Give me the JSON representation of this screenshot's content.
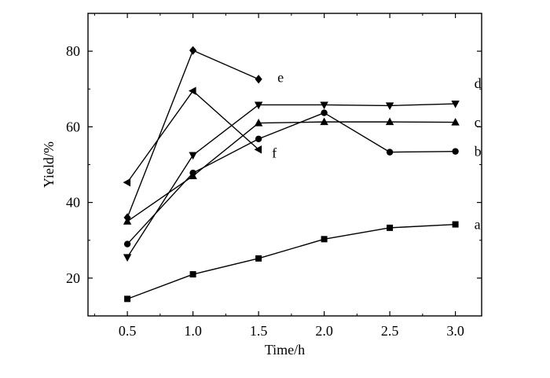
{
  "chart_data": {
    "type": "line",
    "xlabel": "Time/h",
    "ylabel": "Yield/%",
    "xlim": [
      0.2,
      3.2
    ],
    "ylim": [
      10,
      90
    ],
    "x_ticks": [
      0.5,
      1.0,
      1.5,
      2.0,
      2.5,
      3.0
    ],
    "x_tick_labels": [
      "0.5",
      "1.0",
      "1.5",
      "2.0",
      "2.5",
      "3.0"
    ],
    "y_ticks": [
      20,
      40,
      60,
      80
    ],
    "y_tick_labels": [
      "20",
      "40",
      "60",
      "80"
    ],
    "grid": false,
    "line_color": "#000000",
    "series": [
      {
        "name": "a",
        "marker": "square",
        "x": [
          0.5,
          1.0,
          1.5,
          2.0,
          2.5,
          3.0
        ],
        "y": [
          14.5,
          21.0,
          25.2,
          30.3,
          33.3,
          34.2
        ]
      },
      {
        "name": "b",
        "marker": "circle",
        "x": [
          0.5,
          1.0,
          1.5,
          2.0,
          2.5,
          3.0
        ],
        "y": [
          29.0,
          47.8,
          56.8,
          63.7,
          53.3,
          53.5
        ]
      },
      {
        "name": "c",
        "marker": "triangle-up",
        "x": [
          0.5,
          1.0,
          1.5,
          2.0,
          2.5,
          3.0
        ],
        "y": [
          35.0,
          47.0,
          61.0,
          61.3,
          61.3,
          61.2
        ]
      },
      {
        "name": "d",
        "marker": "triangle-down",
        "x": [
          0.5,
          1.0,
          1.5,
          2.0,
          2.5,
          3.0
        ],
        "y": [
          25.5,
          52.5,
          65.8,
          65.8,
          65.6,
          66.1
        ]
      },
      {
        "name": "e",
        "marker": "diamond",
        "x": [
          0.5,
          1.0,
          1.5
        ],
        "y": [
          36.0,
          80.2,
          72.6
        ]
      },
      {
        "name": "f",
        "marker": "triangle-left",
        "x": [
          0.5,
          1.0,
          1.5
        ],
        "y": [
          45.3,
          69.5,
          54.0
        ]
      }
    ]
  }
}
